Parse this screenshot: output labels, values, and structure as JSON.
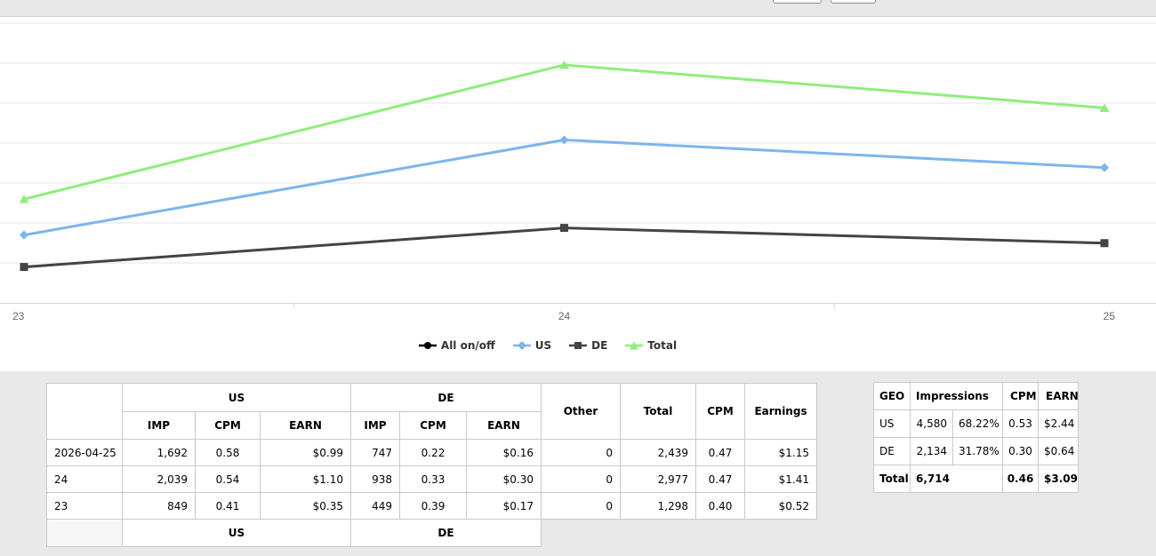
{
  "chart_data": {
    "type": "line",
    "title": "",
    "xlabel": "",
    "ylabel": "",
    "categories": [
      "23",
      "24",
      "25"
    ],
    "series": [
      {
        "name": "All on/off",
        "color": "#000000",
        "symbol": "circle",
        "values": []
      },
      {
        "name": "US",
        "color": "#7cb5ec",
        "symbol": "diamond",
        "values": [
          849,
          2039,
          1692
        ]
      },
      {
        "name": "DE",
        "color": "#434348",
        "symbol": "square",
        "values": [
          449,
          938,
          747
        ]
      },
      {
        "name": "Total",
        "color": "#90ed7d",
        "symbol": "triangle",
        "values": [
          1298,
          2977,
          2439
        ]
      }
    ],
    "ylim": [
      0,
      3500
    ],
    "grid_step": 500,
    "grid": "horizontal",
    "legend_position": "bottom",
    "grid_color": "#e6e6e6",
    "axis_color": "#ccd6eb",
    "label_color": "#666666"
  },
  "left_table": {
    "group_headers": [
      "US",
      "DE"
    ],
    "sub_headers": [
      "IMP",
      "CPM",
      "EARN",
      "IMP",
      "CPM",
      "EARN"
    ],
    "tail_headers": [
      "Other",
      "Total",
      "CPM",
      "Earnings"
    ],
    "rows": [
      {
        "date": "2026-04-25",
        "us_imp": "1,692",
        "us_cpm": "0.58",
        "us_earn": "$0.99",
        "de_imp": "747",
        "de_cpm": "0.22",
        "de_earn": "$0.16",
        "other": "0",
        "total": "2,439",
        "cpm": "0.47",
        "earnings": "$1.15"
      },
      {
        "date": "24",
        "us_imp": "2,039",
        "us_cpm": "0.54",
        "us_earn": "$1.10",
        "de_imp": "938",
        "de_cpm": "0.33",
        "de_earn": "$0.30",
        "other": "0",
        "total": "2,977",
        "cpm": "0.47",
        "earnings": "$1.41"
      },
      {
        "date": "23",
        "us_imp": "849",
        "us_cpm": "0.41",
        "us_earn": "$0.35",
        "de_imp": "449",
        "de_cpm": "0.39",
        "de_earn": "$0.17",
        "other": "0",
        "total": "1,298",
        "cpm": "0.40",
        "earnings": "$0.52"
      }
    ],
    "footer": {
      "us": "US",
      "de": "DE"
    }
  },
  "right_table": {
    "headers": [
      "GEO",
      "Impressions",
      "CPM",
      "EARN"
    ],
    "rows": [
      {
        "geo": "US",
        "impressions": "4,580",
        "share": "68.22%",
        "cpm": "0.53",
        "earn": "$2.44"
      },
      {
        "geo": "DE",
        "impressions": "2,134",
        "share": "31.78%",
        "cpm": "0.30",
        "earn": "$0.64"
      }
    ],
    "total": {
      "geo": "Total",
      "impressions": "6,714",
      "cpm": "0.46",
      "earn": "$3.09"
    }
  }
}
